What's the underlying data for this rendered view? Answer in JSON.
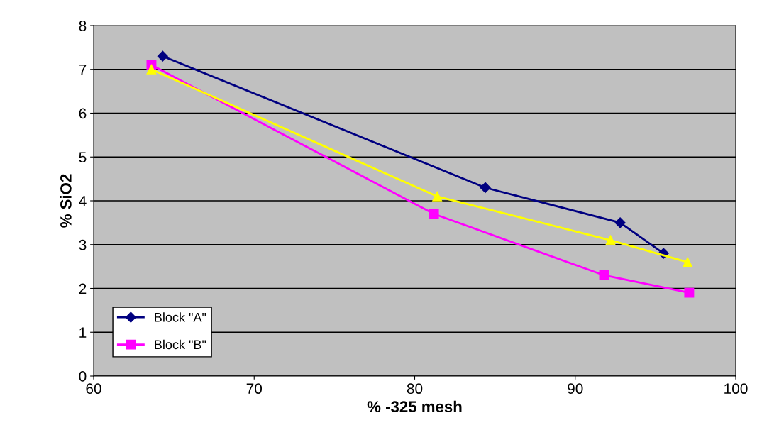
{
  "chart_data": {
    "type": "line",
    "xlabel": "% -325 mesh",
    "ylabel": "% SiO2",
    "xlim": [
      60,
      100
    ],
    "xticks": [
      60,
      70,
      80,
      90,
      100
    ],
    "ylim": [
      0,
      8
    ],
    "yticks": [
      0,
      1,
      2,
      3,
      4,
      5,
      6,
      7,
      8
    ],
    "grid": "y",
    "legend": "bottom left",
    "series": [
      {
        "name": "Block \"A\"",
        "color": "#000080",
        "marker": "diamond",
        "x": [
          64.3,
          84.4,
          92.8,
          95.5
        ],
        "values": [
          7.3,
          4.3,
          3.5,
          2.8
        ]
      },
      {
        "name": "Block \"B\"",
        "color": "#ff00ff",
        "marker": "square",
        "x": [
          63.6,
          81.2,
          91.8,
          97.1
        ],
        "values": [
          7.1,
          3.7,
          2.3,
          1.9
        ]
      },
      {
        "color": "#ffff00",
        "marker": "triangle",
        "x": [
          63.6,
          81.4,
          92.2,
          97.0
        ],
        "values": [
          7.0,
          4.1,
          3.1,
          2.6
        ]
      }
    ]
  }
}
